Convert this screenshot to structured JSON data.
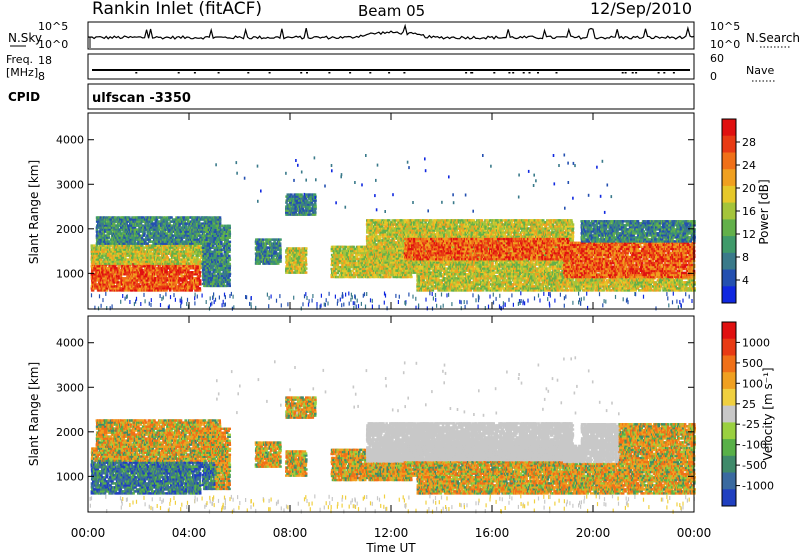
{
  "header": {
    "station": "Rankin Inlet (fitACF)",
    "beam": "Beam 05",
    "date": "12/Sep/2010"
  },
  "top_panels": {
    "nsky": {
      "label": "N.Sky",
      "left_ticks": [
        "10^5",
        "10^0"
      ],
      "right_ticks": [
        "10^5",
        "10^0"
      ],
      "right_label": "N.Search"
    },
    "freq": {
      "label_line1": "Freq.",
      "label_line2": "[MHz]",
      "left_ticks": [
        "18",
        "8"
      ],
      "right_ticks": [
        "60",
        "0"
      ],
      "right_label": "Nave"
    },
    "cpid": {
      "label": "CPID",
      "value": "ulfscan  -3350"
    }
  },
  "chart_data": [
    {
      "type": "heatmap",
      "name": "power",
      "ylabel": "Slant Range [km]",
      "xlabel": "Time UT",
      "xlim": [
        "00:00",
        "24:00"
      ],
      "ylim": [
        200,
        4600
      ],
      "x_ticks": [
        "00:00",
        "04:00",
        "08:00",
        "12:00",
        "16:00",
        "20:00",
        "00:00"
      ],
      "y_ticks": [
        "1000",
        "2000",
        "3000",
        "4000"
      ],
      "colorbar": {
        "label": "Power [dB]",
        "ticks": [
          "4",
          "8",
          "12",
          "16",
          "20",
          "24",
          "28"
        ],
        "colors": [
          "#1028e0",
          "#2450b0",
          "#3a7a8a",
          "#3f9a6a",
          "#62b04a",
          "#a4c43a",
          "#e6c82a",
          "#f0a020",
          "#f07018",
          "#e83a14",
          "#e01010"
        ]
      }
    },
    {
      "type": "heatmap",
      "name": "velocity",
      "ylabel": "Slant Range [km]",
      "xlabel": "Time UT",
      "xlim": [
        "00:00",
        "24:00"
      ],
      "ylim": [
        200,
        4600
      ],
      "x_ticks": [
        "00:00",
        "04:00",
        "08:00",
        "12:00",
        "16:00",
        "20:00",
        "00:00"
      ],
      "y_ticks": [
        "1000",
        "2000",
        "3000",
        "4000"
      ],
      "colorbar": {
        "label": "Velocity [m s⁻¹]",
        "ticks": [
          "1000",
          "500",
          "100",
          "25",
          "-25",
          "-100",
          "-500",
          "-1000"
        ],
        "colors": [
          "#2040c0",
          "#3a6aa0",
          "#3f8a6a",
          "#58b048",
          "#9ad040",
          "#c8c8c8",
          "#f0d040",
          "#f0a020",
          "#f07018",
          "#e83a14",
          "#e01010"
        ]
      }
    }
  ]
}
